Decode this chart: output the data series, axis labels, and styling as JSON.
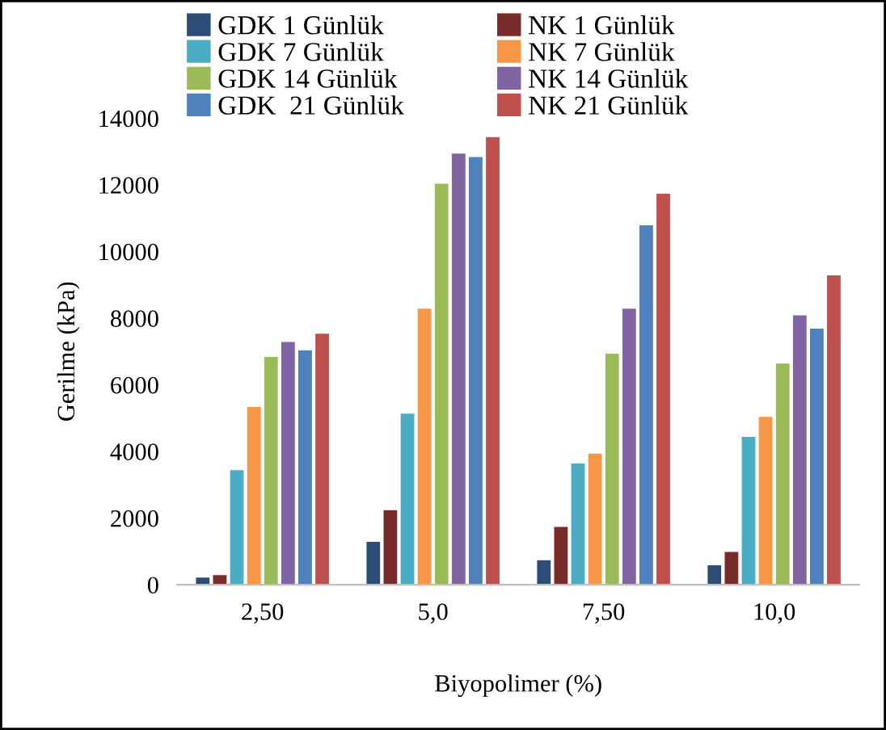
{
  "chart_data": {
    "type": "bar",
    "xlabel": "Biyopolimer (%)",
    "ylabel": "Gerilme (kPa)",
    "categories": [
      "2,50",
      "5,0",
      "7,50",
      "10,0"
    ],
    "series": [
      {
        "name": "GDK 1 Günlük",
        "color": "#2c4d75",
        "values": [
          230,
          1300,
          750,
          600
        ]
      },
      {
        "name": "NK 1 Günlük",
        "color": "#772c2a",
        "values": [
          300,
          2250,
          1750,
          1000
        ]
      },
      {
        "name": "GDK 7 Günlük",
        "color": "#4bacc6",
        "values": [
          3450,
          5150,
          3650,
          4450
        ]
      },
      {
        "name": "NK 7 Günlük",
        "color": "#f79646",
        "values": [
          5350,
          8300,
          3950,
          5050
        ]
      },
      {
        "name": "GDK 14 Günlük",
        "color": "#9bbb59",
        "values": [
          6850,
          12050,
          6950,
          6650
        ]
      },
      {
        "name": "NK 14 Günlük",
        "color": "#8064a2",
        "values": [
          7300,
          12950,
          8300,
          8100
        ]
      },
      {
        "name": "GDK  21 Günlük",
        "color": "#4f81bd",
        "values": [
          7050,
          12850,
          10800,
          7700
        ]
      },
      {
        "name": "NK 21 Günlük",
        "color": "#c0504d",
        "values": [
          7550,
          13450,
          11750,
          9300
        ]
      }
    ],
    "ylim": [
      0,
      14000
    ],
    "yticks": [
      0,
      2000,
      4000,
      6000,
      8000,
      10000,
      12000,
      14000
    ],
    "grid": false,
    "legend": "top"
  }
}
